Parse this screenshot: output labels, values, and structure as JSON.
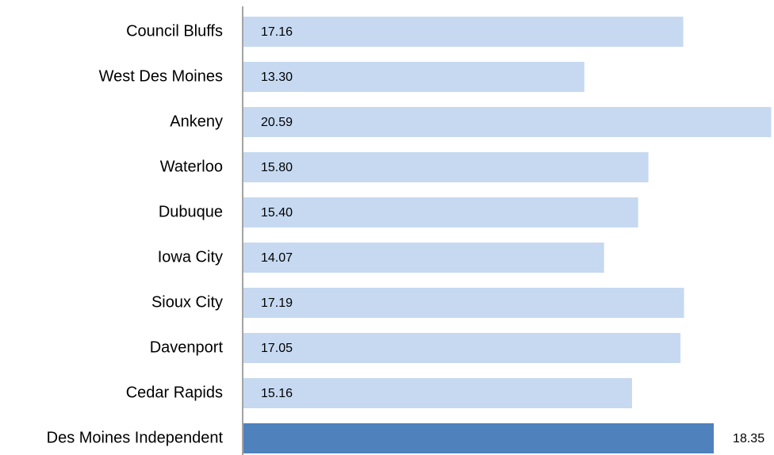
{
  "chart_data": {
    "type": "barh",
    "categories": [
      "Council Bluffs",
      "West Des Moines",
      "Ankeny",
      "Waterloo",
      "Dubuque",
      "Iowa City",
      "Sioux City",
      "Davenport",
      "Cedar Rapids",
      "Des Moines Independent"
    ],
    "values": [
      17.16,
      13.3,
      20.59,
      15.8,
      15.4,
      14.07,
      17.19,
      17.05,
      15.16,
      18.35
    ],
    "value_labels": [
      "17.16",
      "13.30",
      "20.59",
      "15.80",
      "15.40",
      "14.07",
      "17.19",
      "17.05",
      "15.16",
      "18.35"
    ],
    "colors": [
      "#c6d9f1",
      "#c6d9f1",
      "#c6d9f1",
      "#c6d9f1",
      "#c6d9f1",
      "#c6d9f1",
      "#c6d9f1",
      "#c6d9f1",
      "#c6d9f1",
      "#4f81bd"
    ],
    "xlim": [
      0,
      20.7
    ]
  }
}
